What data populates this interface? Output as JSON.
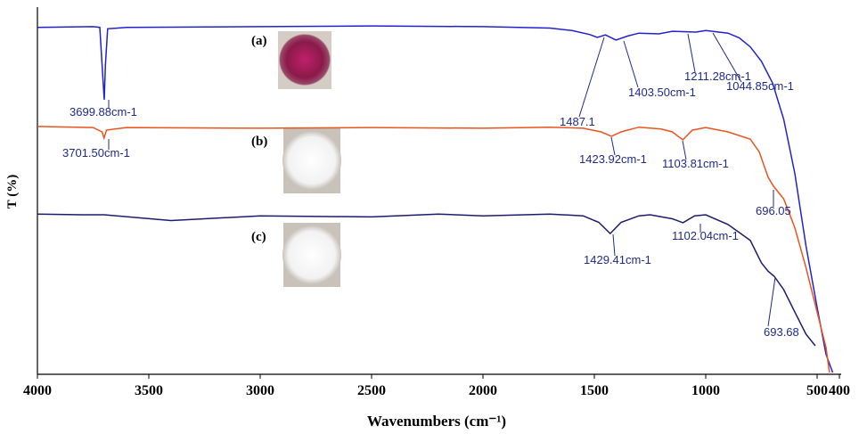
{
  "chart_data": {
    "type": "line",
    "x_label": "Wavenumbers (cm⁻¹)",
    "y_label": "T (%)",
    "xlim": [
      4000,
      400
    ],
    "xticks": [
      4000,
      3500,
      3000,
      2500,
      2000,
      1500,
      1000,
      500,
      400
    ],
    "ylim": [
      0,
      100
    ],
    "series": [
      {
        "name": "(a)",
        "color": "#2222cc",
        "x": [
          4000,
          3750,
          3720,
          3705,
          3700,
          3695,
          3685,
          3600,
          3000,
          2500,
          2000,
          1700,
          1600,
          1520,
          1487,
          1450,
          1403,
          1350,
          1300,
          1211,
          1150,
          1044,
          1000,
          900,
          850,
          800,
          750,
          700,
          650,
          600,
          550,
          500,
          460,
          430
        ],
        "values": [
          95.4,
          95.6,
          95.4,
          80,
          75.4,
          85,
          95,
          95.4,
          95.6,
          95.8,
          95.6,
          95.2,
          94.5,
          93.4,
          92.6,
          93.3,
          91.9,
          93,
          93.8,
          93.6,
          94.3,
          94.1,
          94.5,
          93.8,
          92.5,
          90,
          86,
          80,
          70,
          55,
          35,
          18,
          5,
          0
        ]
      },
      {
        "name": "(b)",
        "color": "#e8541e",
        "x": [
          4000,
          3750,
          3710,
          3701,
          3690,
          3600,
          3000,
          2500,
          2000,
          1700,
          1550,
          1470,
          1423,
          1380,
          1300,
          1200,
          1150,
          1103,
          1060,
          1000,
          900,
          800,
          760,
          720,
          696,
          650,
          600,
          550,
          500,
          460,
          445
        ],
        "values": [
          68,
          67.7,
          66.5,
          64.8,
          67,
          67.7,
          67.5,
          67.7,
          67.5,
          67.8,
          67.5,
          66.5,
          65.3,
          66.5,
          67.8,
          67.3,
          66.5,
          64.3,
          67,
          67.7,
          66.5,
          64.5,
          61,
          54,
          51.5,
          48,
          40,
          29,
          16.7,
          6.9,
          0
        ]
      },
      {
        "name": "(c)",
        "color": "#1c1c6e",
        "x": [
          4000,
          3800,
          3700,
          3400,
          3000,
          2500,
          2200,
          2000,
          1700,
          1550,
          1480,
          1429,
          1380,
          1300,
          1250,
          1150,
          1102,
          1050,
          1000,
          900,
          800,
          750,
          720,
          693,
          650,
          600,
          550,
          508
        ],
        "values": [
          43.8,
          43.6,
          43.6,
          42,
          43.3,
          43,
          43.8,
          43.3,
          43.8,
          43.3,
          41.5,
          38.4,
          41.5,
          43.3,
          43.6,
          42.5,
          41.4,
          43.3,
          43.6,
          40.9,
          36.5,
          30.3,
          28,
          26.6,
          22.9,
          16.7,
          10.6,
          7.4
        ]
      }
    ],
    "annotations": [
      "3699.88cm-1",
      "1487.1",
      "1403.50cm-1",
      "1211.28cm-1",
      "1044.85cm-1",
      "3701.50cm-1",
      "1423.92cm-1",
      "1103.81cm-1",
      "696.05",
      "1429.41cm-1",
      "1102.04cm-1",
      "693.68"
    ]
  }
}
